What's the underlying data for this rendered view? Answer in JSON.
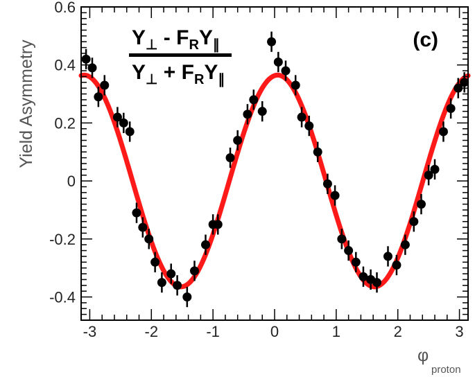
{
  "chart_data": {
    "type": "scatter",
    "panel_label": "(c)",
    "ylabel": "Yield Asymmetry",
    "xlabel": "φ",
    "xlabel_subscript": "proton",
    "xlim": [
      -3.14,
      3.14
    ],
    "ylim": [
      -0.48,
      0.6
    ],
    "x_ticks": [
      -3,
      -2,
      -1,
      0,
      1,
      2,
      3
    ],
    "x_tick_labels": [
      "-3",
      "-2",
      "-1",
      "0",
      "1",
      "2",
      "3"
    ],
    "y_ticks": [
      -0.4,
      -0.2,
      0,
      0.2,
      0.4,
      0.6
    ],
    "y_tick_labels": [
      "-0.4",
      "-0.2",
      "0",
      "0.2",
      "0.4",
      "0.6"
    ],
    "formula": {
      "numerator": [
        "Y",
        "⊥",
        " - F",
        "R",
        "Y",
        "∥"
      ],
      "denominator": [
        "Y",
        "⊥",
        " + F",
        "R",
        "Y",
        "∥"
      ]
    },
    "fit": {
      "amplitude": 0.365,
      "frequency": 2,
      "phase": 0.1,
      "color": "#ff1a1a"
    },
    "series": [
      {
        "marker_color": "#000000",
        "points": [
          {
            "x": -3.06,
            "y": 0.42,
            "err": 0.035
          },
          {
            "x": -2.96,
            "y": 0.39,
            "err": 0.035
          },
          {
            "x": -2.86,
            "y": 0.29,
            "err": 0.035
          },
          {
            "x": -2.76,
            "y": 0.33,
            "err": 0.035
          },
          {
            "x": -2.55,
            "y": 0.22,
            "err": 0.035
          },
          {
            "x": -2.45,
            "y": 0.2,
            "err": 0.035
          },
          {
            "x": -2.35,
            "y": 0.17,
            "err": 0.035
          },
          {
            "x": -2.24,
            "y": -0.11,
            "err": 0.035
          },
          {
            "x": -2.14,
            "y": -0.16,
            "err": 0.035
          },
          {
            "x": -2.04,
            "y": -0.2,
            "err": 0.035
          },
          {
            "x": -1.94,
            "y": -0.28,
            "err": 0.035
          },
          {
            "x": -1.83,
            "y": -0.35,
            "err": 0.035
          },
          {
            "x": -1.68,
            "y": -0.32,
            "err": 0.035
          },
          {
            "x": -1.58,
            "y": -0.36,
            "err": 0.035
          },
          {
            "x": -1.42,
            "y": -0.4,
            "err": 0.035
          },
          {
            "x": -1.3,
            "y": -0.31,
            "err": 0.035
          },
          {
            "x": -1.12,
            "y": -0.22,
            "err": 0.035
          },
          {
            "x": -1.0,
            "y": -0.15,
            "err": 0.035
          },
          {
            "x": -0.92,
            "y": -0.15,
            "err": 0.035
          },
          {
            "x": -0.72,
            "y": 0.08,
            "err": 0.035
          },
          {
            "x": -0.6,
            "y": 0.14,
            "err": 0.035
          },
          {
            "x": -0.44,
            "y": 0.23,
            "err": 0.035
          },
          {
            "x": -0.34,
            "y": 0.28,
            "err": 0.035
          },
          {
            "x": -0.2,
            "y": 0.24,
            "err": 0.035
          },
          {
            "x": -0.05,
            "y": 0.48,
            "err": 0.035
          },
          {
            "x": 0.06,
            "y": 0.41,
            "err": 0.035
          },
          {
            "x": 0.18,
            "y": 0.38,
            "err": 0.035
          },
          {
            "x": 0.34,
            "y": 0.33,
            "err": 0.035
          },
          {
            "x": 0.44,
            "y": 0.22,
            "err": 0.035
          },
          {
            "x": 0.56,
            "y": 0.19,
            "err": 0.035
          },
          {
            "x": 0.7,
            "y": 0.1,
            "err": 0.035
          },
          {
            "x": 0.86,
            "y": -0.01,
            "err": 0.035
          },
          {
            "x": 0.98,
            "y": -0.05,
            "err": 0.035
          },
          {
            "x": 1.09,
            "y": -0.2,
            "err": 0.035
          },
          {
            "x": 1.2,
            "y": -0.24,
            "err": 0.035
          },
          {
            "x": 1.32,
            "y": -0.28,
            "err": 0.035
          },
          {
            "x": 1.44,
            "y": -0.33,
            "err": 0.035
          },
          {
            "x": 1.56,
            "y": -0.34,
            "err": 0.035
          },
          {
            "x": 1.66,
            "y": -0.35,
            "err": 0.035
          },
          {
            "x": 1.84,
            "y": -0.26,
            "err": 0.035
          },
          {
            "x": 1.98,
            "y": -0.29,
            "err": 0.035
          },
          {
            "x": 2.12,
            "y": -0.22,
            "err": 0.035
          },
          {
            "x": 2.26,
            "y": -0.14,
            "err": 0.035
          },
          {
            "x": 2.38,
            "y": -0.08,
            "err": 0.035
          },
          {
            "x": 2.5,
            "y": 0.02,
            "err": 0.035
          },
          {
            "x": 2.6,
            "y": 0.04,
            "err": 0.035
          },
          {
            "x": 2.74,
            "y": 0.17,
            "err": 0.035
          },
          {
            "x": 2.86,
            "y": 0.25,
            "err": 0.035
          },
          {
            "x": 2.98,
            "y": 0.32,
            "err": 0.035
          },
          {
            "x": 3.08,
            "y": 0.34,
            "err": 0.035
          }
        ]
      }
    ]
  }
}
